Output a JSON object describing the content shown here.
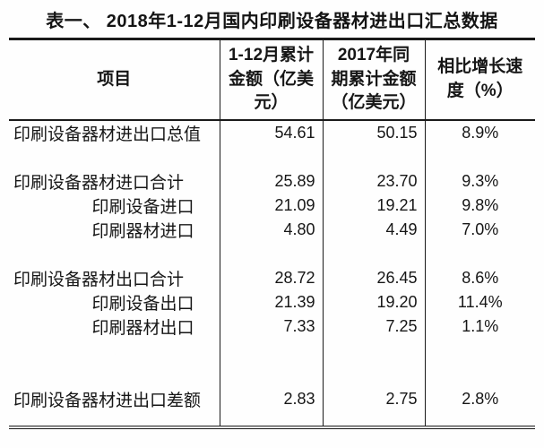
{
  "page": {
    "title": "表一、 2018年1-12月国内印刷设备器材进出口汇总数据"
  },
  "table": {
    "columns": {
      "item": "项目",
      "amount_2018": "1-12月累计\n金额（亿美\n元）",
      "amount_2017": "2017年同\n期累计金额\n（亿美元）",
      "growth": "相比增长速\n度（%）"
    },
    "rows": [
      {
        "label": "印刷设备器材进出口总值",
        "indent": false,
        "amount_2018": "54.61",
        "amount_2017": "50.15",
        "growth": "8.9%"
      },
      {
        "label": "印刷设备器材进口合计",
        "indent": false,
        "amount_2018": "25.89",
        "amount_2017": "23.70",
        "growth": "9.3%"
      },
      {
        "label": "印刷设备进口",
        "indent": true,
        "amount_2018": "21.09",
        "amount_2017": "19.21",
        "growth": "9.8%"
      },
      {
        "label": "印刷器材进口",
        "indent": true,
        "amount_2018": "4.80",
        "amount_2017": "4.49",
        "growth": "7.0%"
      },
      {
        "label": "印刷设备器材出口合计",
        "indent": false,
        "amount_2018": "28.72",
        "amount_2017": "26.45",
        "growth": "8.6%"
      },
      {
        "label": "印刷设备出口",
        "indent": true,
        "amount_2018": "21.39",
        "amount_2017": "19.20",
        "growth": "11.4%"
      },
      {
        "label": "印刷器材出口",
        "indent": true,
        "amount_2018": "7.33",
        "amount_2017": "7.25",
        "growth": "1.1%"
      },
      {
        "label": "印刷设备器材进出口差额",
        "indent": false,
        "amount_2018": "2.83",
        "amount_2017": "2.75",
        "growth": "2.8%"
      }
    ]
  },
  "chart_data": {
    "type": "table",
    "title": "表一、 2018年1-12月国内印刷设备器材进出口汇总数据",
    "columns": [
      "项目",
      "1-12月累计金额（亿美元）",
      "2017年同期累计金额（亿美元）",
      "相比增长速度（%）"
    ],
    "rows": [
      [
        "印刷设备器材进出口总值",
        54.61,
        50.15,
        "8.9%"
      ],
      [
        "印刷设备器材进口合计",
        25.89,
        23.7,
        "9.3%"
      ],
      [
        "印刷设备进口",
        21.09,
        19.21,
        "9.8%"
      ],
      [
        "印刷器材进口",
        4.8,
        4.49,
        "7.0%"
      ],
      [
        "印刷设备器材出口合计",
        28.72,
        26.45,
        "8.6%"
      ],
      [
        "印刷设备出口",
        21.39,
        19.2,
        "11.4%"
      ],
      [
        "印刷器材出口",
        7.33,
        7.25,
        "1.1%"
      ],
      [
        "印刷设备器材进出口差额",
        2.83,
        2.75,
        "2.8%"
      ]
    ]
  }
}
